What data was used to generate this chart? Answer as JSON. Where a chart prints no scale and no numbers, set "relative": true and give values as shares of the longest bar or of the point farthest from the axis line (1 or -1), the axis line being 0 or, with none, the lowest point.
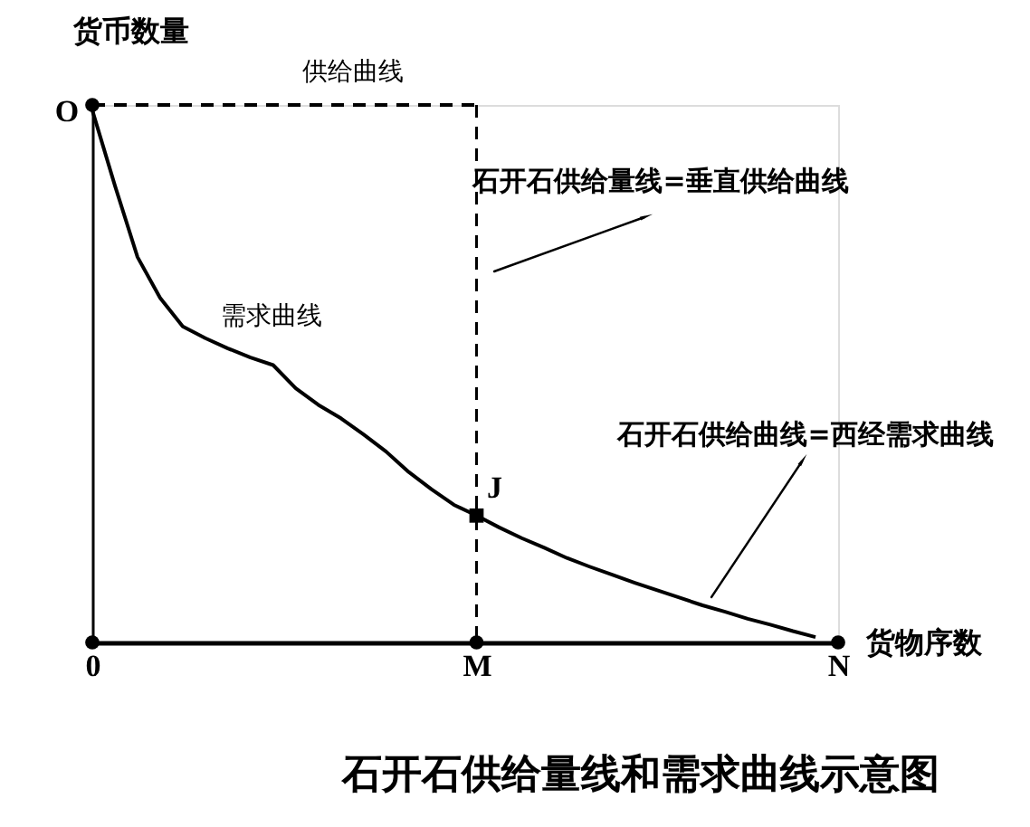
{
  "chart_data": {
    "type": "line",
    "relative": true,
    "title": "石开石供给量线和需求曲线示意图",
    "xlabel": "货物序数",
    "ylabel": "货币数量",
    "categories": [
      "0",
      null,
      null,
      null,
      null,
      null,
      null,
      null,
      null,
      null,
      null,
      null,
      null,
      null,
      null,
      null,
      null,
      "M",
      null,
      null,
      null,
      null,
      null,
      null,
      null,
      null,
      null,
      null,
      null,
      null,
      null,
      null,
      null,
      "N"
    ],
    "grid": false,
    "series": [
      {
        "name": "供给曲线",
        "color": "#000000",
        "line_style": "dashed",
        "marker": "none",
        "values": [
          1,
          1,
          1,
          1,
          1,
          1,
          1,
          1,
          1,
          1,
          1,
          1,
          1,
          1,
          1,
          1,
          1,
          1,
          null,
          null,
          null,
          null,
          null,
          null,
          null,
          null,
          null,
          null,
          null,
          null,
          null,
          null,
          null,
          null
        ]
      },
      {
        "name": "需求曲线",
        "color": "#000000",
        "line_style": "solid",
        "marker": "none",
        "values": [
          0.99,
          0.85,
          0.717,
          0.641,
          0.588,
          0.566,
          0.547,
          0.53,
          0.516,
          0.473,
          0.442,
          0.417,
          0.387,
          0.355,
          0.317,
          0.285,
          0.256,
          0.236,
          0.214,
          0.194,
          0.176,
          0.157,
          0.141,
          0.126,
          0.111,
          0.097,
          0.083,
          0.069,
          0.057,
          0.044,
          0.033,
          0.021,
          0.01,
          null
        ]
      },
      {
        "type": "scatter",
        "color": "#000000",
        "marker": "circle",
        "values": [
          0,
          null,
          null,
          null,
          null,
          null,
          null,
          null,
          null,
          null,
          null,
          null,
          null,
          null,
          null,
          null,
          null,
          0,
          null,
          null,
          null,
          null,
          null,
          null,
          null,
          null,
          null,
          null,
          null,
          null,
          null,
          null,
          null,
          0
        ]
      },
      {
        "type": "scatter",
        "color": "#000000",
        "marker": "circle",
        "values": [
          1,
          null,
          null,
          null,
          null,
          null,
          null,
          null,
          null,
          null,
          null,
          null,
          null,
          null,
          null,
          null,
          null,
          null,
          null,
          null,
          null,
          null,
          null,
          null,
          null,
          null,
          null,
          null,
          null,
          null,
          null,
          null,
          null,
          null
        ]
      },
      {
        "type": "scatter",
        "color": "#000000",
        "marker": "square",
        "values": [
          null,
          null,
          null,
          null,
          null,
          null,
          null,
          null,
          null,
          null,
          null,
          null,
          null,
          null,
          null,
          null,
          null,
          0.236,
          null,
          null,
          null,
          null,
          null,
          null,
          null,
          null,
          null,
          null,
          null,
          null,
          null,
          null,
          null,
          null
        ]
      }
    ],
    "ref_lines": [
      {
        "axis": "x",
        "value": "M",
        "color": "#000000",
        "line_style": "dashed"
      }
    ],
    "annotations": [
      {
        "text": "O",
        "x": "0",
        "y": 1
      },
      {
        "text": "J",
        "x": "M",
        "y": 0.236
      },
      "石开石供给量线=垂直供给曲线",
      "石开石供给曲线=西经需求曲线"
    ]
  }
}
